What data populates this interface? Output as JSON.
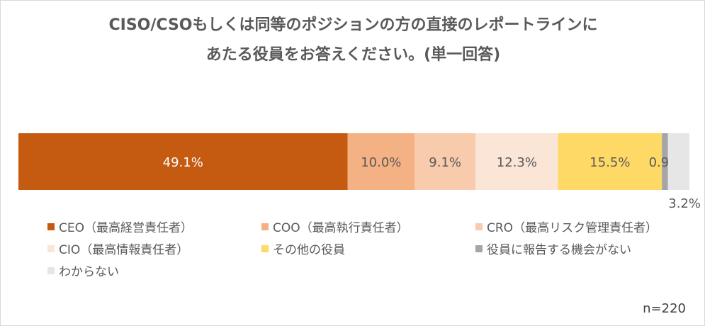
{
  "chart_data": {
    "type": "bar",
    "orientation": "horizontal-stacked-100",
    "title_lines": [
      "CISO/CSOもしくは同等のポジションの方の直接のレポートラインに",
      "あたる役員をお答えください。(単一回答)"
    ],
    "sample_note": "n=220",
    "legend_placement": "bottom",
    "series": [
      {
        "name": "CEO（最高経営責任者）",
        "value": 49.1,
        "label": "49.1%",
        "color": "#C55A11",
        "label_color": "#ffffff"
      },
      {
        "name": "COO（最高執行責任者）",
        "value": 10.0,
        "label": "10.0%",
        "color": "#F4B183",
        "label_color": "#595959"
      },
      {
        "name": "CRO（最高リスク管理責任者）",
        "value": 9.1,
        "label": "9.1%",
        "color": "#F8CBAD",
        "label_color": "#595959"
      },
      {
        "name": "CIO（最高情報責任者）",
        "value": 12.3,
        "label": "12.3%",
        "color": "#FBE5D6",
        "label_color": "#595959"
      },
      {
        "name": "その他の役員",
        "value": 15.5,
        "label": "15.5%",
        "color": "#FFD966",
        "label_color": "#595959"
      },
      {
        "name": "役員に報告する機会がない",
        "value": 0.9,
        "label": "0.9%",
        "color": "#A5A5A5",
        "label_color": "#595959"
      },
      {
        "name": "わからない",
        "value": 3.2,
        "label": "3.2%",
        "color": "#E7E6E6",
        "label_color": "#595959"
      }
    ]
  }
}
